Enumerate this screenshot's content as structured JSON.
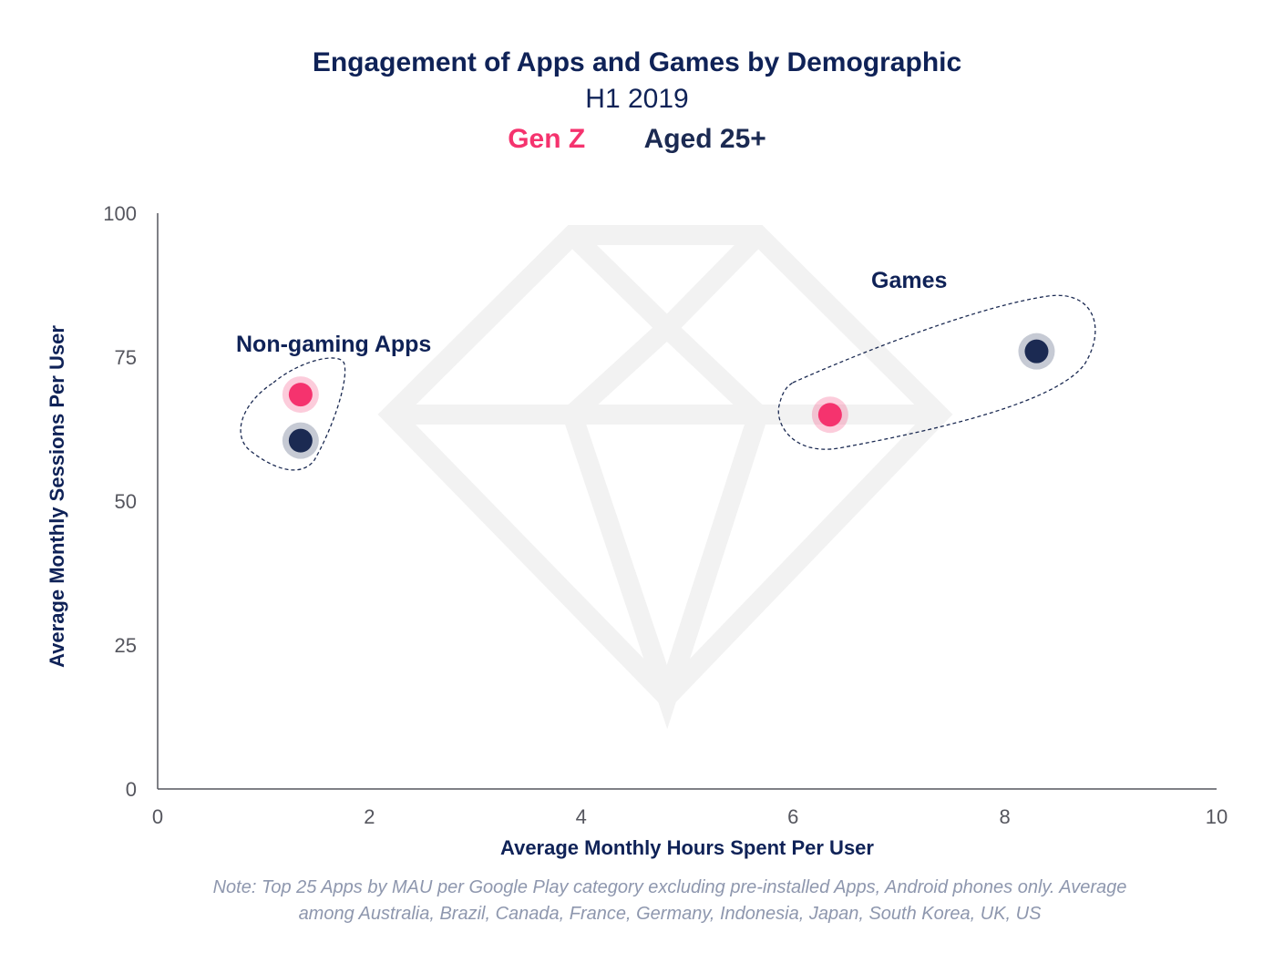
{
  "colors": {
    "gen_z": "#f5336e",
    "aged_25_plus": "#1b2a52",
    "axis_label": "#0f2257",
    "tick_label": "#55565e",
    "note": "#8e97ae",
    "watermark": "#f2f2f2"
  },
  "note": "Note: Top 25 Apps by MAU per Google Play category excluding pre-installed Apps, Android phones only. Average among Australia, Brazil, Canada, France, Germany, Indonesia, Japan, South Korea, UK, US",
  "watermark_icon": "diamond-logo-icon",
  "chart_data": {
    "type": "scatter",
    "title": "Engagement of Apps and Games by Demographic",
    "subtitle": "H1 2019",
    "xlabel": "Average Monthly Hours Spent Per User",
    "ylabel": "Average Monthly Sessions Per User",
    "xlim": [
      0,
      10
    ],
    "ylim": [
      0,
      100
    ],
    "xticks": [
      "0",
      "2",
      "4",
      "6",
      "8",
      "10"
    ],
    "yticks": [
      "0",
      "25",
      "50",
      "75",
      "100"
    ],
    "grid": false,
    "legend": {
      "placement": "top-center",
      "entries": [
        "Gen Z",
        "Aged 25+"
      ]
    },
    "series": [
      {
        "name": "Gen Z",
        "color": "#f5336e",
        "points": [
          {
            "x": 1.35,
            "y": 68.5
          },
          {
            "x": 6.35,
            "y": 65
          }
        ]
      },
      {
        "name": "Aged 25+",
        "color": "#1b2a52",
        "points": [
          {
            "x": 1.35,
            "y": 60.5
          },
          {
            "x": 8.3,
            "y": 76
          }
        ]
      }
    ],
    "annotations": [
      {
        "text": "Non-gaming Apps",
        "group": "Non-gaming Apps"
      },
      {
        "text": "Games",
        "group": "Games"
      }
    ]
  }
}
